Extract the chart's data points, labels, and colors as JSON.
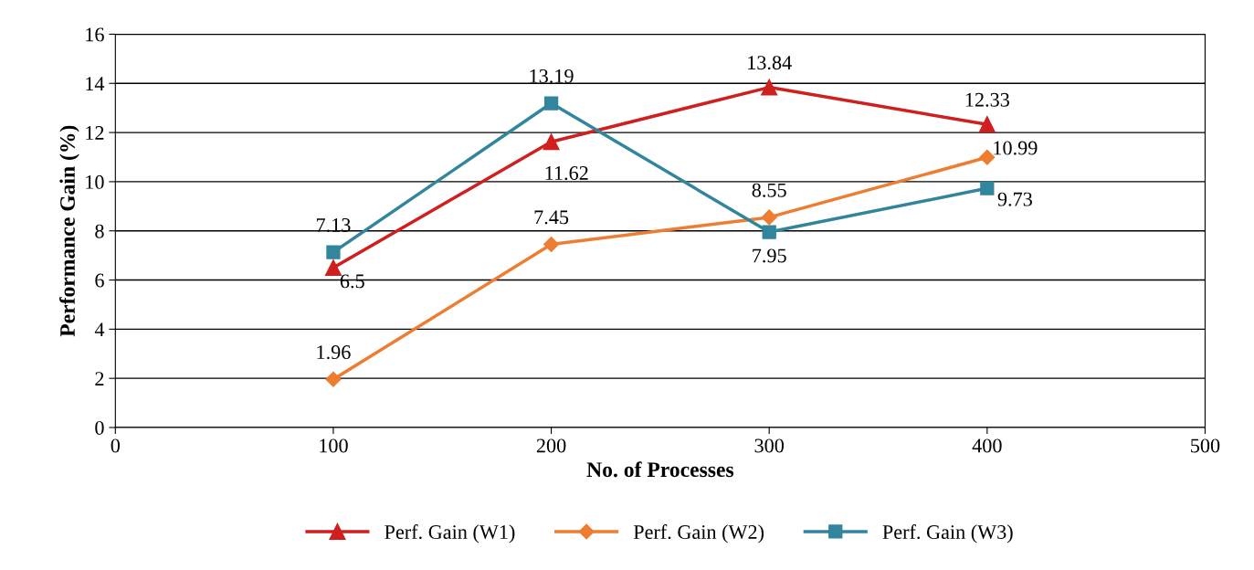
{
  "chart_data": {
    "type": "line",
    "xlabel": "No. of Processes",
    "ylabel": "Performance Gain (%)",
    "x": [
      100,
      200,
      300,
      400
    ],
    "series": [
      {
        "name": "Perf. Gain (W1)",
        "color": "#d01f1f",
        "marker": "triangle",
        "values": [
          6.5,
          11.62,
          13.84,
          12.33
        ]
      },
      {
        "name": "Perf. Gain (W2)",
        "color": "#ed7d31",
        "marker": "diamond",
        "values": [
          1.96,
          7.45,
          8.55,
          10.99
        ]
      },
      {
        "name": "Perf. Gain (W3)",
        "color": "#31859c",
        "marker": "square",
        "values": [
          7.13,
          13.19,
          7.95,
          9.73
        ]
      }
    ],
    "xlim": [
      0,
      500
    ],
    "xticks": [
      0,
      100,
      200,
      300,
      400,
      500
    ],
    "ylim": [
      0,
      16
    ],
    "yticks": [
      0,
      2,
      4,
      6,
      8,
      10,
      12,
      14,
      16
    ],
    "grid": "y",
    "legend": "bottom",
    "data_labels": true
  }
}
